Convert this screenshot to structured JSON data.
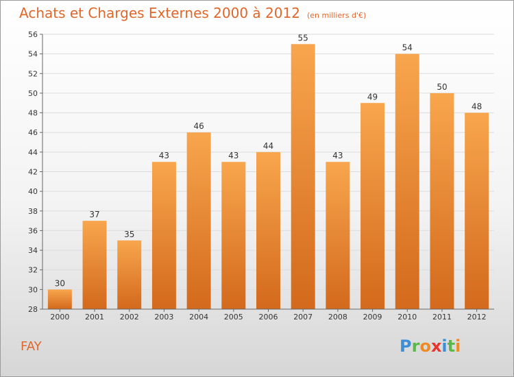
{
  "title": "Achats et Charges Externes 2000 à 2012",
  "subtitle": "(en milliers d'€)",
  "location": "FAY",
  "logo": {
    "letters": [
      "P",
      "r",
      "o",
      "x",
      "i",
      "t",
      "i"
    ],
    "colors": [
      "#3a8fd8",
      "#5bb84a",
      "#f08a24",
      "#e8342c",
      "#3a8fd8",
      "#5bb84a",
      "#f08a24"
    ]
  },
  "colors": {
    "bar_top": "#f8a64e",
    "bar_bottom": "#d3691c",
    "title": "#e0662a"
  },
  "chart_data": {
    "type": "bar",
    "title": "Achats et Charges Externes 2000 à 2012",
    "subtitle": "(en milliers d'€)",
    "categories": [
      "2000",
      "2001",
      "2002",
      "2003",
      "2004",
      "2005",
      "2006",
      "2007",
      "2008",
      "2009",
      "2010",
      "2011",
      "2012"
    ],
    "values": [
      30,
      37,
      35,
      43,
      46,
      43,
      44,
      55,
      43,
      49,
      54,
      50,
      48
    ],
    "ylim": [
      28,
      56
    ],
    "yticks": [
      28,
      30,
      32,
      34,
      36,
      38,
      40,
      42,
      44,
      46,
      48,
      50,
      52,
      54,
      56
    ],
    "grid": true,
    "data_labels": true
  }
}
